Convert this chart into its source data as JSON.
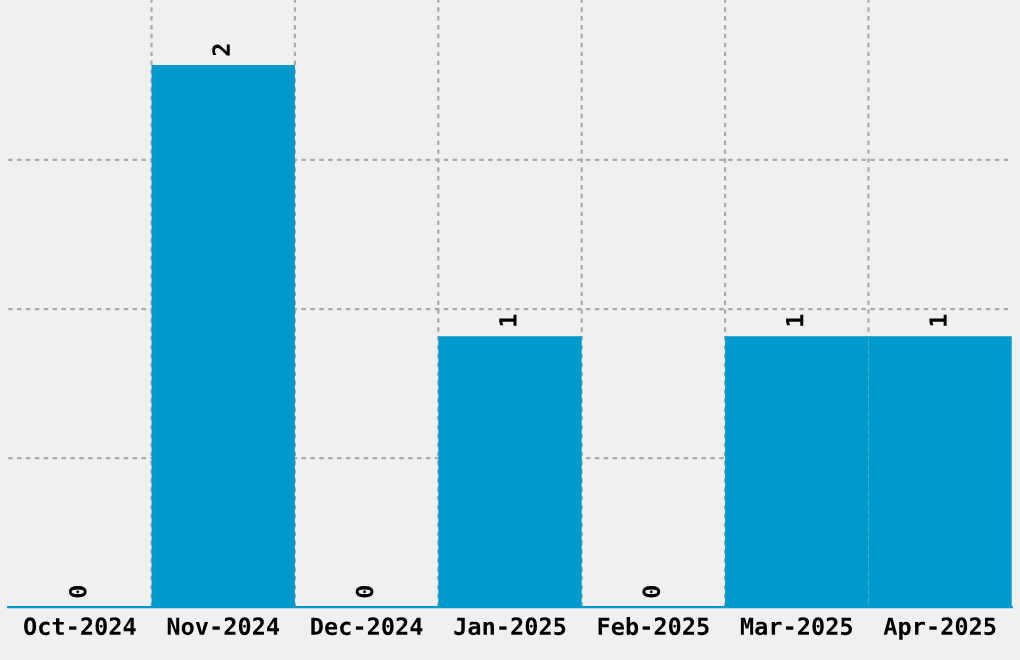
{
  "chart_data": {
    "type": "bar",
    "categories": [
      "Oct-2024",
      "Nov-2024",
      "Dec-2024",
      "Jan-2025",
      "Feb-2025",
      "Mar-2025",
      "Apr-2025"
    ],
    "values": [
      0,
      2,
      0,
      1,
      0,
      1,
      1
    ],
    "color": "#0099cc",
    "ylim": [
      0,
      2.24
    ],
    "yticks": [
      {
        "value": 0.55,
        "label": null
      },
      {
        "value": 1.1,
        "label": null
      },
      {
        "value": 1.65,
        "label": null
      }
    ],
    "tick_labels": "x",
    "grid": true,
    "data_labels": true
  }
}
